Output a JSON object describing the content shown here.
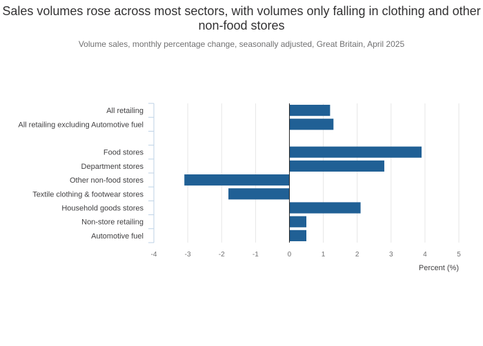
{
  "chart_data": {
    "type": "bar",
    "orientation": "horizontal",
    "title": "Sales volumes rose across most sectors, with volumes only falling in clothing and other non-food stores",
    "subtitle": "Volume sales, monthly percentage change, seasonally adjusted, Great Britain, April 2025",
    "xlabel": "Percent (%)",
    "ylabel": "",
    "xlim": [
      -4,
      5
    ],
    "xticks": [
      "-4",
      "-3",
      "-2",
      "-1",
      "0",
      "1",
      "2",
      "3",
      "4",
      "5"
    ],
    "grid": "vertical",
    "categories": [
      "All retailing",
      "All retailing excluding Automotive fuel",
      "",
      "Food stores",
      "Department stores",
      "Other non-food stores",
      "Textile clothing & footwear stores",
      "Household goods stores",
      "Non-store retailing",
      "Automotive fuel"
    ],
    "values": [
      1.2,
      1.3,
      null,
      3.9,
      2.8,
      -3.1,
      -1.8,
      2.1,
      0.5,
      0.5
    ],
    "bar_color": "#206095"
  }
}
